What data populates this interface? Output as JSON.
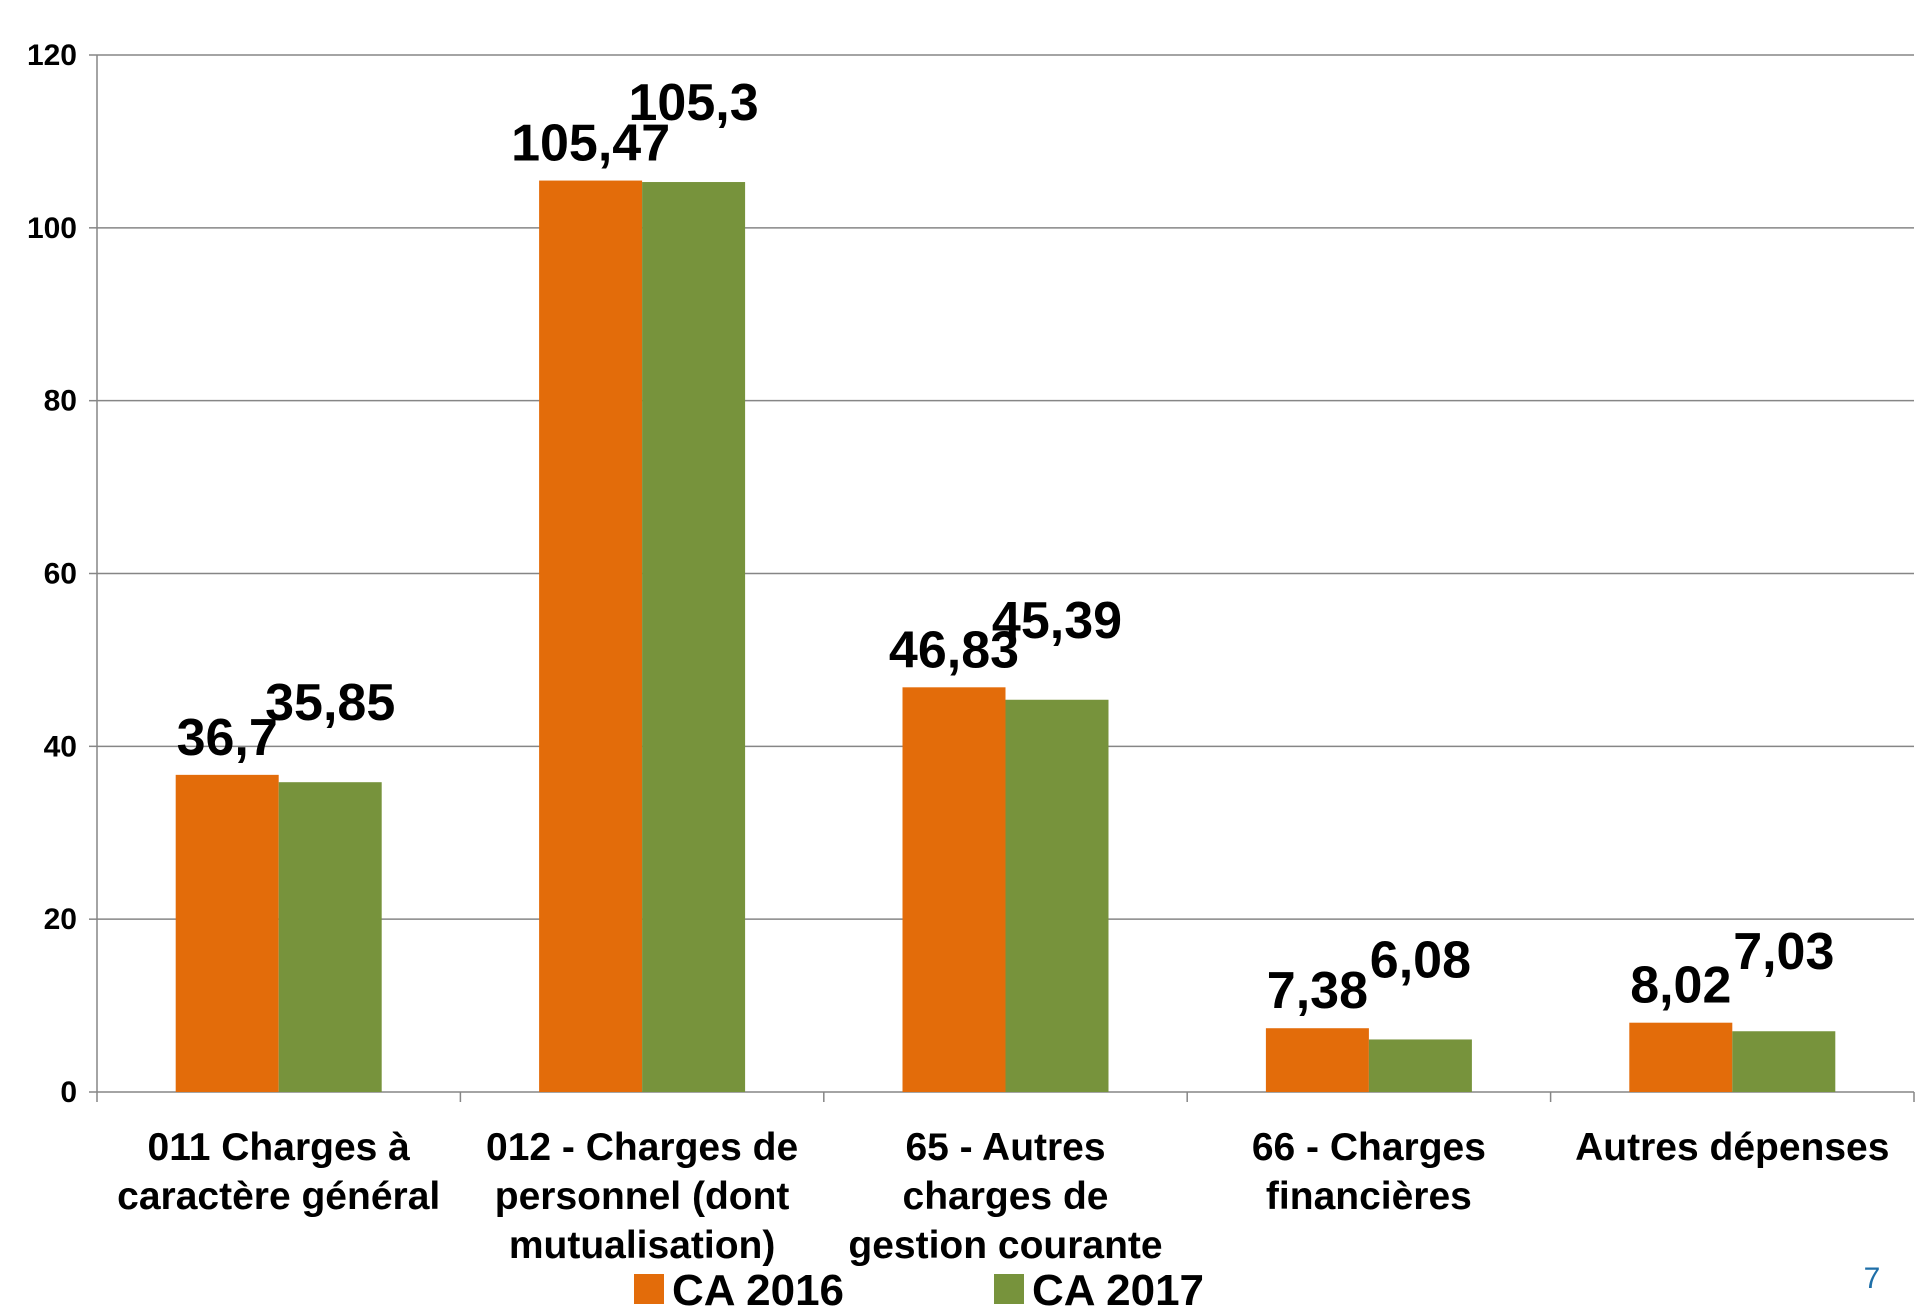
{
  "chart_data": {
    "type": "bar",
    "categories": [
      [
        "011 Charges à",
        "caractère général"
      ],
      [
        "012 - Charges de",
        "personnel (dont",
        "mutualisation)"
      ],
      [
        "65 - Autres",
        "charges de",
        "gestion courante"
      ],
      [
        "66 - Charges",
        "financières"
      ],
      [
        "Autres dépenses"
      ]
    ],
    "series": [
      {
        "name": "CA 2016",
        "color": "#e36c0a",
        "values": [
          36.7,
          105.47,
          46.83,
          7.38,
          8.02
        ],
        "labels": [
          "36,7",
          "105,47",
          "46,83",
          "7,38",
          "8,02"
        ]
      },
      {
        "name": "CA 2017",
        "color": "#77933c",
        "values": [
          35.85,
          105.3,
          45.39,
          6.08,
          7.03
        ],
        "labels": [
          "35,85",
          "105,3",
          "45,39",
          "6,08",
          "7,03"
        ]
      }
    ],
    "ylim": [
      0,
      120
    ],
    "yticks": [
      0,
      20,
      40,
      60,
      80,
      100,
      120
    ],
    "grid": true,
    "legend": "bottom",
    "page_number": "7"
  }
}
